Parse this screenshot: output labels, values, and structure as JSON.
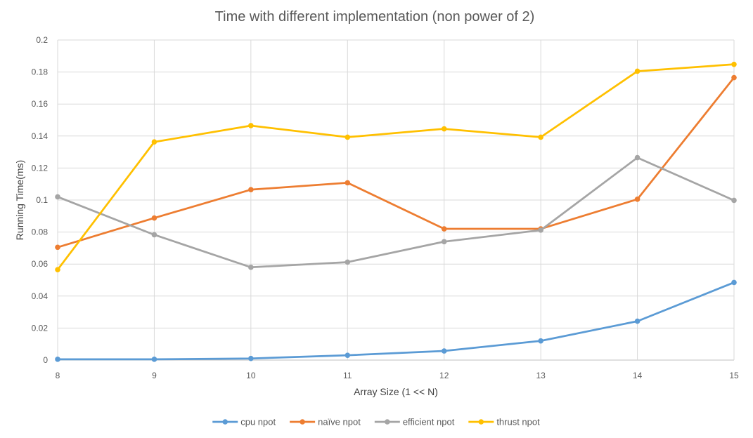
{
  "chart_data": {
    "type": "line",
    "title": "Time with different implementation (non power of 2)",
    "xlabel": "Array Size (1 << N)",
    "ylabel": "Running Time(ms)",
    "x": [
      8,
      9,
      10,
      11,
      12,
      13,
      14,
      15
    ],
    "x_tick_labels": [
      "8",
      "9",
      "10",
      "11",
      "12",
      "13",
      "14",
      "15"
    ],
    "ylim": [
      0,
      0.2
    ],
    "y_ticks": [
      0,
      0.02,
      0.04,
      0.06,
      0.08,
      0.1,
      0.12,
      0.14,
      0.16,
      0.18,
      0.2
    ],
    "y_tick_labels": [
      "0",
      "0.02",
      "0.04",
      "0.06",
      "0.08",
      "0.1",
      "0.12",
      "0.14",
      "0.16",
      "0.18",
      "0.2"
    ],
    "grid": true,
    "legend_position": "bottom",
    "series": [
      {
        "name": "cpu npot",
        "color": "#5B9BD5",
        "values": [
          0.0005,
          0.0005,
          0.001,
          0.003,
          0.0057,
          0.012,
          0.0243,
          0.0485
        ]
      },
      {
        "name": "naïve npot",
        "color": "#ED7D31",
        "values": [
          0.0705,
          0.0888,
          0.1065,
          0.1108,
          0.082,
          0.082,
          0.1005,
          0.1765
        ]
      },
      {
        "name": "efficient npot",
        "color": "#A5A5A5",
        "values": [
          0.102,
          0.0783,
          0.058,
          0.0612,
          0.074,
          0.0812,
          0.1265,
          0.0998
        ]
      },
      {
        "name": "thrust npot",
        "color": "#FFC000",
        "values": [
          0.0565,
          0.1363,
          0.1465,
          0.1393,
          0.1445,
          0.1393,
          0.1805,
          0.1848
        ]
      }
    ]
  }
}
